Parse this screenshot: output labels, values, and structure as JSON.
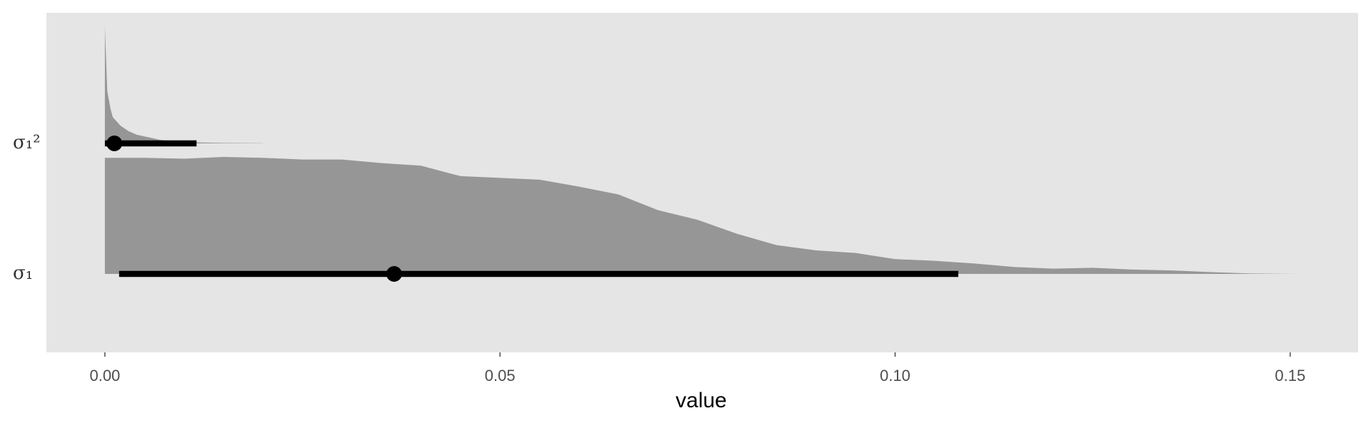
{
  "chart_data": {
    "type": "halfeye",
    "xlabel": "value",
    "xlim": [
      -0.0074,
      0.1586
    ],
    "xticks": [
      {
        "value": 0,
        "label": "0.00"
      },
      {
        "value": 0.05,
        "label": "0.05"
      },
      {
        "value": 0.1,
        "label": "0.10"
      },
      {
        "value": 0.15,
        "label": "0.15"
      }
    ],
    "density_color": "#969696",
    "interval_color": "#000000",
    "series": [
      {
        "name": "σ₁²",
        "x": [
          0,
          0.0003,
          0.0007,
          0.001,
          0.002,
          0.003,
          0.004,
          0.005,
          0.006,
          0.007,
          0.008,
          0.01,
          0.012,
          0.015,
          0.02
        ],
        "density": [
          134,
          60,
          40,
          30,
          20,
          14,
          10,
          8,
          6,
          4,
          3,
          1.5,
          1,
          0.5,
          0.2
        ],
        "point": 0.0012,
        "interval": [
          0,
          0.0116
        ]
      },
      {
        "name": "σ₁",
        "x": [
          0,
          0.005,
          0.01,
          0.015,
          0.02,
          0.025,
          0.03,
          0.035,
          0.04,
          0.045,
          0.05,
          0.055,
          0.06,
          0.065,
          0.07,
          0.075,
          0.08,
          0.085,
          0.09,
          0.095,
          0.1,
          0.105,
          0.11,
          0.115,
          0.12,
          0.125,
          0.13,
          0.135,
          0.14,
          0.145,
          0.151
        ],
        "density": [
          133,
          133,
          132,
          134,
          133,
          131,
          131,
          127,
          124,
          112,
          110,
          108,
          100,
          91,
          73,
          62,
          46,
          33,
          27,
          24,
          17,
          15,
          12,
          8,
          6,
          7,
          5,
          4,
          2,
          0.5,
          0
        ],
        "point": 0.0366,
        "interval": [
          0.0018,
          0.108
        ]
      }
    ]
  }
}
